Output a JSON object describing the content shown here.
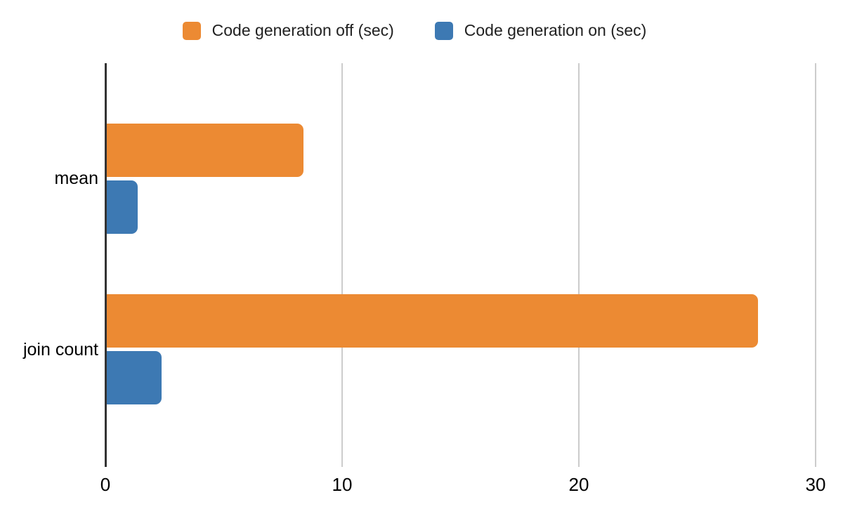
{
  "page": {
    "background": "#ffffff"
  },
  "chart_data": {
    "type": "bar",
    "orientation": "horizontal",
    "title": "",
    "xlabel": "",
    "ylabel": "",
    "categories": [
      "mean",
      "join count"
    ],
    "series": [
      {
        "name": "Code generation off (sec)",
        "color": "#EC8A33",
        "values": [
          8.3,
          27.5
        ]
      },
      {
        "name": "Code generation on (sec)",
        "color": "#3D79B3",
        "values": [
          1.3,
          2.3
        ]
      }
    ],
    "xlim": [
      0,
      30
    ],
    "xticks": [
      0,
      10,
      20,
      30
    ],
    "legend_position": "top",
    "grid": "vertical-gridlines",
    "gridline_color": "#cccccc",
    "axis_color": "#333333",
    "text_color": "#000000"
  }
}
